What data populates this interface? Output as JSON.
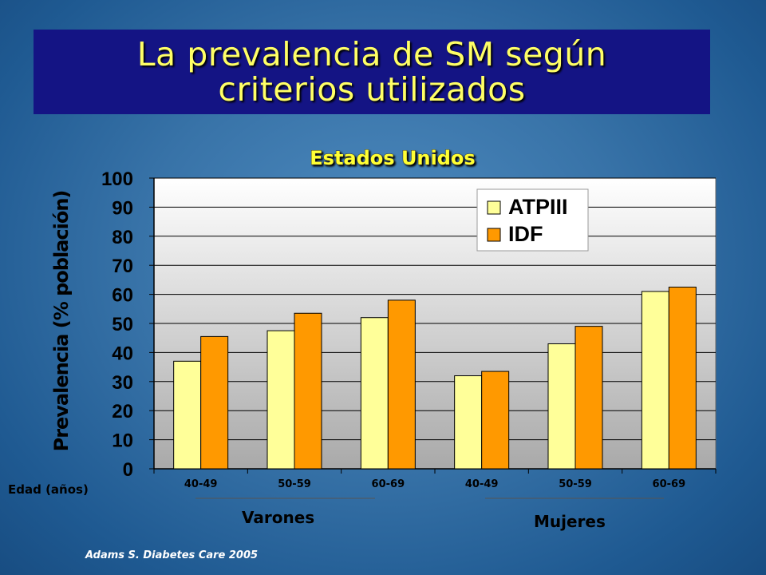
{
  "slide": {
    "title_line1": "La prevalencia de SM según",
    "title_line2": "criterios utilizados",
    "citation": "Adams S.  Diabetes Care 2005",
    "age_label": "Edad (años)",
    "colors": {
      "title_bg": "#141484",
      "title_text": "#ffff66",
      "chart_title": "#ffff33"
    }
  },
  "chart_data": {
    "type": "bar",
    "title": "Estados Unidos",
    "ylabel": "Prevalencia (% población)",
    "xlabel": "",
    "ylim": [
      0,
      100
    ],
    "yticks": [
      0,
      10,
      20,
      30,
      40,
      50,
      60,
      70,
      80,
      90,
      100
    ],
    "grid": true,
    "legend_position": "top-right",
    "categories": [
      "40-49",
      "50-59",
      "60-69",
      "40-49",
      "50-59",
      "60-69"
    ],
    "groups": [
      {
        "label": "Varones"
      },
      {
        "label": "Mujeres"
      }
    ],
    "series": [
      {
        "name": "ATPIII",
        "color": "#ffff99",
        "values": [
          37,
          47.5,
          52,
          32,
          43,
          61
        ]
      },
      {
        "name": "IDF",
        "color": "#ff9900",
        "values": [
          45.5,
          53.5,
          58,
          33.5,
          49,
          62.5
        ]
      }
    ]
  }
}
